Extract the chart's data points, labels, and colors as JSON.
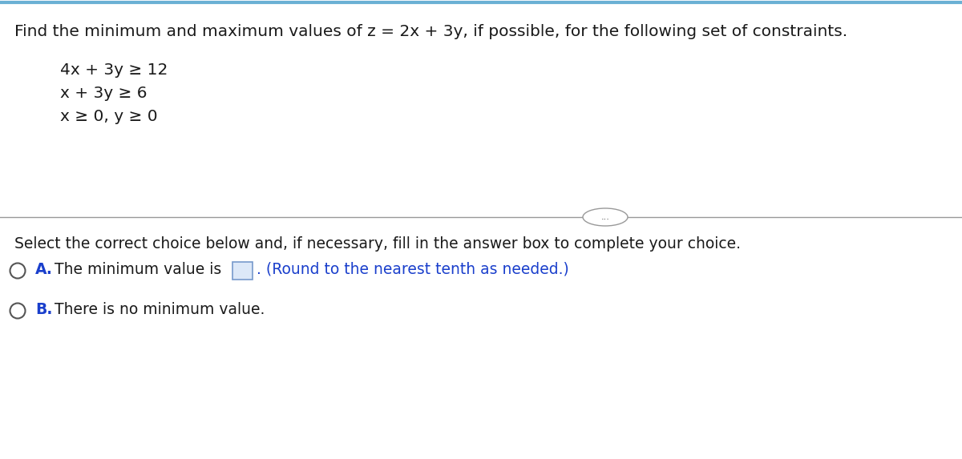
{
  "title_text": "Find the minimum and maximum values of z = 2x + 3y, if possible, for the following set of constraints.",
  "constraints": [
    "4x + 3y ≥ 12",
    "x + 3y ≥ 6",
    "x ≥ 0, y ≥ 0"
  ],
  "divider_text": "...",
  "instruction_text": "Select the correct choice below and, if necessary, fill in the answer box to complete your choice.",
  "choice_A_label": "A.",
  "choice_A_text": "The minimum value is",
  "choice_A_suffix": ". (Round to the nearest tenth as needed.)",
  "choice_B_label": "B.",
  "choice_B_text": "There is no minimum value.",
  "background_color": "#ffffff",
  "text_color": "#1a1a1a",
  "blue_color": "#1a3fcc",
  "top_border_color": "#6ab0d4",
  "divider_color": "#999999",
  "circle_color": "#555555",
  "box_fill": "#dce8f8",
  "box_edge": "#7799cc",
  "font_size_title": 14.5,
  "font_size_constraints": 14.5,
  "font_size_instruction": 13.5,
  "font_size_choices": 13.5,
  "font_size_dots": 8
}
